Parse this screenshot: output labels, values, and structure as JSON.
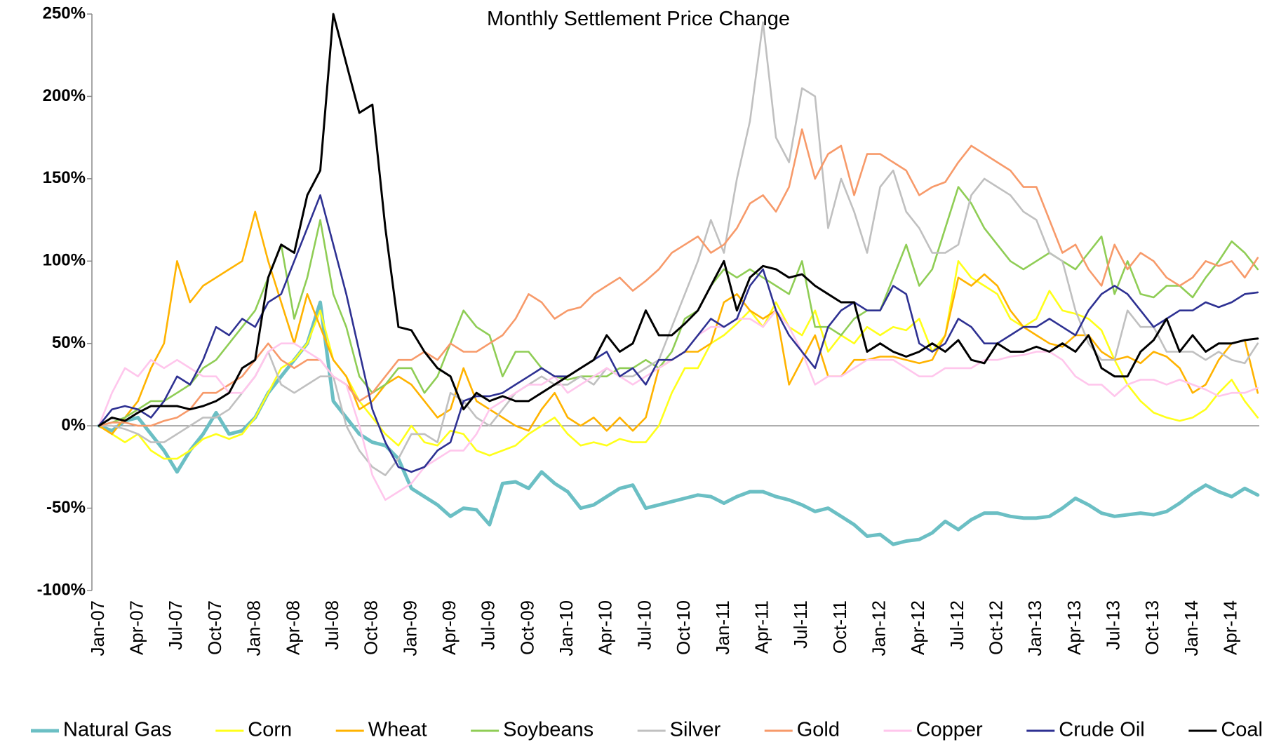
{
  "chart_data": {
    "type": "line",
    "title": "Monthly Settlement Price Change",
    "categories": [
      "Jan-07",
      null,
      null,
      "Apr-07",
      null,
      null,
      "Jul-07",
      null,
      null,
      "Oct-07",
      null,
      null,
      "Jan-08",
      null,
      null,
      "Apr-08",
      null,
      null,
      "Jul-08",
      null,
      null,
      "Oct-08",
      null,
      null,
      "Jan-09",
      null,
      null,
      "Apr-09",
      null,
      null,
      "Jul-09",
      null,
      null,
      "Oct-09",
      null,
      null,
      "Jan-10",
      null,
      null,
      "Apr-10",
      null,
      null,
      "Jul-10",
      null,
      null,
      "Oct-10",
      null,
      null,
      "Jan-11",
      null,
      null,
      "Apr-11",
      null,
      null,
      "Jul-11",
      null,
      null,
      "Oct-11",
      null,
      null,
      "Jan-12",
      null,
      null,
      "Apr-12",
      null,
      null,
      "Jul-12",
      null,
      null,
      "Oct-12",
      null,
      null,
      "Jan-13",
      null,
      null,
      "Apr-13",
      null,
      null,
      "Jul-13",
      null,
      null,
      "Oct-13",
      null,
      null,
      "Jan-14",
      null,
      null,
      "Apr-14",
      null,
      null
    ],
    "ylim": [
      -100,
      250
    ],
    "yticks": [
      {
        "value": -100,
        "label": "-100%"
      },
      {
        "value": -50,
        "label": "-50%"
      },
      {
        "value": 0,
        "label": "0%"
      },
      {
        "value": 50,
        "label": "50%"
      },
      {
        "value": 100,
        "label": "100%"
      },
      {
        "value": 150,
        "label": "150%"
      },
      {
        "value": 200,
        "label": "200%"
      },
      {
        "value": 250,
        "label": "250%"
      }
    ],
    "legend": "bottom",
    "series": [
      {
        "name": "Natural Gas",
        "color": "#6bbfc4",
        "values": [
          0,
          -3,
          3,
          5,
          -5,
          -15,
          -28,
          -15,
          -5,
          8,
          -5,
          -3,
          5,
          20,
          30,
          40,
          50,
          75,
          15,
          5,
          -5,
          -10,
          -12,
          -20,
          -38,
          -43,
          -48,
          -55,
          -50,
          -51,
          -60,
          -35,
          -34,
          -38,
          -28,
          -35,
          -40,
          -50,
          -48,
          -43,
          -38,
          -36,
          -50,
          -48,
          -46,
          -44,
          -42,
          -43,
          -47,
          -43,
          -40,
          -40,
          -43,
          -45,
          -48,
          -52,
          -50,
          -55,
          -60,
          -67,
          -66,
          -72,
          -70,
          -69,
          -65,
          -58,
          -63,
          -57,
          -53,
          -53,
          -55,
          -56,
          -56,
          -55,
          -50,
          -44,
          -48,
          -53,
          -55,
          -54,
          -53,
          -54,
          -52,
          -47,
          -41,
          -36,
          -40,
          -43,
          -38,
          -42
        ]
      },
      {
        "name": "Corn",
        "color": "#ffff1a",
        "values": [
          0,
          -5,
          -10,
          -5,
          -15,
          -20,
          -20,
          -15,
          -8,
          -5,
          -8,
          -5,
          5,
          20,
          35,
          40,
          50,
          70,
          40,
          30,
          15,
          5,
          -5,
          -12,
          0,
          -10,
          -12,
          -3,
          -5,
          -15,
          -18,
          -15,
          -12,
          -5,
          0,
          5,
          -5,
          -12,
          -10,
          -12,
          -8,
          -10,
          -10,
          0,
          20,
          35,
          35,
          50,
          55,
          62,
          70,
          60,
          75,
          60,
          55,
          70,
          45,
          55,
          50,
          60,
          55,
          60,
          58,
          65,
          45,
          55,
          100,
          90,
          85,
          80,
          65,
          60,
          65,
          82,
          70,
          68,
          65,
          58,
          40,
          25,
          15,
          8,
          5,
          3,
          5,
          10,
          20,
          28,
          15,
          5
        ]
      },
      {
        "name": "Wheat",
        "color": "#ffb300",
        "values": [
          0,
          -5,
          5,
          15,
          35,
          50,
          100,
          75,
          85,
          90,
          95,
          100,
          130,
          100,
          75,
          50,
          80,
          60,
          40,
          30,
          10,
          15,
          25,
          30,
          25,
          15,
          5,
          10,
          35,
          15,
          10,
          5,
          0,
          -3,
          10,
          20,
          5,
          0,
          5,
          -3,
          5,
          -3,
          5,
          35,
          40,
          45,
          45,
          50,
          75,
          80,
          70,
          65,
          70,
          25,
          40,
          55,
          30,
          30,
          40,
          40,
          42,
          42,
          40,
          38,
          40,
          55,
          90,
          85,
          92,
          85,
          70,
          60,
          55,
          50,
          48,
          55,
          55,
          45,
          40,
          42,
          38,
          45,
          42,
          35,
          20,
          25,
          40,
          50,
          52,
          20
        ]
      },
      {
        "name": "Soybeans",
        "color": "#8fcd55",
        "values": [
          0,
          2,
          5,
          10,
          15,
          15,
          20,
          25,
          35,
          40,
          50,
          60,
          70,
          90,
          110,
          65,
          90,
          125,
          80,
          60,
          30,
          20,
          25,
          35,
          35,
          20,
          30,
          50,
          70,
          60,
          55,
          30,
          45,
          45,
          35,
          30,
          28,
          30,
          30,
          30,
          35,
          35,
          40,
          35,
          45,
          65,
          70,
          85,
          95,
          90,
          95,
          90,
          85,
          80,
          100,
          60,
          60,
          55,
          65,
          70,
          70,
          90,
          110,
          85,
          95,
          120,
          145,
          135,
          120,
          110,
          100,
          95,
          100,
          105,
          100,
          95,
          105,
          115,
          80,
          100,
          80,
          78,
          85,
          85,
          78,
          90,
          100,
          112,
          105,
          95
        ]
      },
      {
        "name": "Silver",
        "color": "#c0c0c0",
        "values": [
          0,
          0,
          -2,
          -5,
          -10,
          -10,
          -5,
          0,
          5,
          5,
          10,
          20,
          30,
          45,
          25,
          20,
          25,
          30,
          30,
          0,
          -15,
          -25,
          -30,
          -20,
          -5,
          -5,
          -10,
          20,
          15,
          5,
          0,
          10,
          20,
          25,
          30,
          25,
          25,
          30,
          25,
          35,
          30,
          30,
          35,
          40,
          60,
          80,
          100,
          125,
          105,
          150,
          185,
          245,
          175,
          160,
          205,
          200,
          120,
          150,
          130,
          105,
          145,
          155,
          130,
          120,
          105,
          105,
          110,
          140,
          150,
          145,
          140,
          130,
          125,
          105,
          100,
          70,
          50,
          40,
          40,
          70,
          60,
          60,
          45,
          45,
          45,
          40,
          45,
          40,
          38,
          50
        ]
      },
      {
        "name": "Gold",
        "color": "#f79a6a",
        "values": [
          0,
          2,
          2,
          0,
          0,
          3,
          5,
          10,
          20,
          20,
          25,
          30,
          40,
          50,
          40,
          35,
          40,
          40,
          30,
          25,
          15,
          20,
          30,
          40,
          40,
          45,
          40,
          50,
          45,
          45,
          50,
          55,
          65,
          80,
          75,
          65,
          70,
          72,
          80,
          85,
          90,
          82,
          88,
          95,
          105,
          110,
          115,
          105,
          110,
          120,
          135,
          140,
          130,
          145,
          180,
          150,
          165,
          170,
          140,
          165,
          165,
          160,
          155,
          140,
          145,
          148,
          160,
          170,
          165,
          160,
          155,
          145,
          145,
          125,
          105,
          110,
          95,
          85,
          110,
          95,
          105,
          100,
          90,
          85,
          90,
          100,
          97,
          100,
          90,
          102
        ]
      },
      {
        "name": "Copper",
        "color": "#ffc6ec",
        "values": [
          0,
          20,
          35,
          30,
          40,
          35,
          40,
          35,
          30,
          30,
          20,
          20,
          30,
          45,
          50,
          50,
          45,
          40,
          30,
          25,
          0,
          -30,
          -45,
          -40,
          -35,
          -25,
          -20,
          -15,
          -15,
          -5,
          10,
          15,
          20,
          25,
          25,
          30,
          20,
          25,
          30,
          35,
          30,
          25,
          30,
          35,
          40,
          45,
          55,
          60,
          60,
          65,
          65,
          60,
          70,
          60,
          45,
          25,
          30,
          30,
          35,
          40,
          40,
          40,
          35,
          30,
          30,
          35,
          35,
          35,
          40,
          40,
          42,
          43,
          45,
          45,
          40,
          30,
          25,
          25,
          18,
          25,
          28,
          28,
          25,
          28,
          25,
          22,
          18,
          20,
          20,
          23
        ]
      },
      {
        "name": "Crude Oil",
        "color": "#2e3192",
        "values": [
          0,
          10,
          12,
          10,
          5,
          15,
          30,
          25,
          40,
          60,
          55,
          65,
          60,
          75,
          80,
          100,
          120,
          140,
          110,
          80,
          45,
          10,
          -10,
          -25,
          -28,
          -25,
          -15,
          -10,
          15,
          18,
          18,
          20,
          25,
          30,
          35,
          30,
          30,
          35,
          40,
          45,
          30,
          35,
          25,
          40,
          40,
          45,
          55,
          65,
          60,
          65,
          85,
          95,
          70,
          55,
          45,
          35,
          60,
          70,
          75,
          70,
          70,
          85,
          80,
          50,
          45,
          50,
          65,
          60,
          50,
          50,
          55,
          60,
          60,
          65,
          60,
          55,
          70,
          80,
          85,
          80,
          70,
          60,
          65,
          70,
          70,
          75,
          72,
          75,
          80,
          81
        ]
      },
      {
        "name": "Coal",
        "color": "#000000",
        "values": [
          0,
          5,
          3,
          8,
          12,
          12,
          12,
          10,
          12,
          15,
          20,
          35,
          40,
          90,
          110,
          105,
          140,
          155,
          250,
          220,
          190,
          195,
          120,
          60,
          58,
          45,
          35,
          30,
          10,
          20,
          15,
          18,
          15,
          15,
          20,
          25,
          30,
          35,
          40,
          55,
          45,
          50,
          70,
          55,
          55,
          62,
          70,
          85,
          100,
          70,
          90,
          97,
          95,
          90,
          92,
          85,
          80,
          75,
          75,
          45,
          50,
          45,
          42,
          45,
          50,
          45,
          52,
          40,
          38,
          50,
          45,
          45,
          48,
          45,
          50,
          45,
          55,
          35,
          30,
          30,
          45,
          52,
          65,
          45,
          55,
          45,
          50,
          50,
          52,
          53
        ]
      }
    ]
  }
}
